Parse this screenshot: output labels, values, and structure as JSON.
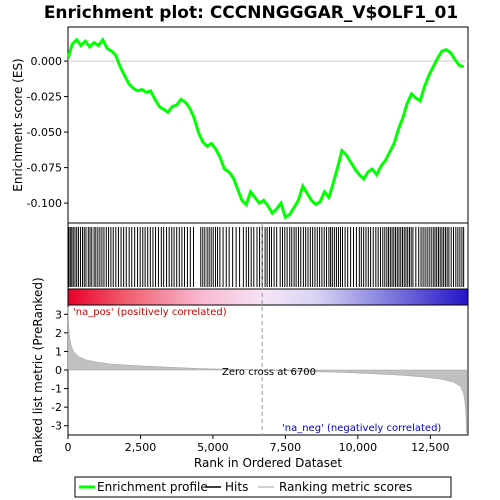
{
  "chart_data": {
    "type": "line",
    "title": "Enrichment plot: CCCNNGGGAR_V$OLF1_01",
    "top_panel": {
      "ylabel": "Enrichment score (ES)",
      "ylim": [
        -0.114,
        0.024
      ],
      "yticks": [
        0.0,
        -0.025,
        -0.05,
        -0.075,
        -0.1
      ],
      "ytick_labels": [
        "0.000",
        "-0.025",
        "-0.050",
        "-0.075",
        "-0.100"
      ],
      "series": [
        {
          "name": "Enrichment profile",
          "color": "#00ff00",
          "x": [
            0,
            150,
            300,
            450,
            600,
            750,
            900,
            1050,
            1200,
            1350,
            1500,
            1650,
            1800,
            1950,
            2100,
            2250,
            2400,
            2550,
            2700,
            2850,
            3000,
            3150,
            3300,
            3450,
            3600,
            3750,
            3900,
            4050,
            4200,
            4350,
            4500,
            4650,
            4800,
            4950,
            5100,
            5250,
            5400,
            5550,
            5700,
            5850,
            6000,
            6150,
            6300,
            6450,
            6600,
            6750,
            6900,
            7050,
            7200,
            7350,
            7500,
            7650,
            7800,
            7950,
            8100,
            8250,
            8400,
            8550,
            8700,
            8850,
            9000,
            9150,
            9300,
            9450,
            9600,
            9750,
            9900,
            10050,
            10200,
            10350,
            10500,
            10650,
            10800,
            10950,
            11100,
            11250,
            11400,
            11550,
            11700,
            11850,
            12000,
            12150,
            12300,
            12450,
            12600,
            12750,
            12900,
            13050,
            13200,
            13350,
            13500,
            13650
          ],
          "y": [
            0.002,
            0.012,
            0.015,
            0.011,
            0.014,
            0.01,
            0.013,
            0.011,
            0.015,
            0.009,
            0.007,
            0.004,
            -0.004,
            -0.01,
            -0.016,
            -0.019,
            -0.021,
            -0.02,
            -0.022,
            -0.021,
            -0.027,
            -0.032,
            -0.034,
            -0.036,
            -0.032,
            -0.031,
            -0.027,
            -0.029,
            -0.033,
            -0.04,
            -0.05,
            -0.057,
            -0.06,
            -0.058,
            -0.062,
            -0.068,
            -0.076,
            -0.078,
            -0.082,
            -0.09,
            -0.098,
            -0.101,
            -0.092,
            -0.096,
            -0.1,
            -0.098,
            -0.102,
            -0.107,
            -0.104,
            -0.1,
            -0.11,
            -0.108,
            -0.103,
            -0.098,
            -0.088,
            -0.093,
            -0.098,
            -0.101,
            -0.099,
            -0.092,
            -0.096,
            -0.086,
            -0.075,
            -0.063,
            -0.066,
            -0.071,
            -0.076,
            -0.08,
            -0.083,
            -0.078,
            -0.076,
            -0.08,
            -0.074,
            -0.07,
            -0.064,
            -0.058,
            -0.048,
            -0.04,
            -0.03,
            -0.023,
            -0.026,
            -0.028,
            -0.018,
            -0.01,
            -0.004,
            0.002,
            0.007,
            0.008,
            0.006,
            0.001,
            -0.003,
            -0.004
          ]
        }
      ]
    },
    "hits_panel": {
      "legend_label": "Hits",
      "hit_ranks": [
        30,
        80,
        130,
        180,
        240,
        300,
        360,
        430,
        500,
        560,
        620,
        700,
        760,
        820,
        900,
        960,
        1030,
        1100,
        1170,
        1240,
        1320,
        1400,
        1480,
        1560,
        1650,
        1740,
        1830,
        1920,
        2010,
        2110,
        2200,
        2300,
        2400,
        2490,
        2580,
        2660,
        2750,
        2840,
        2930,
        3020,
        3120,
        3220,
        3300,
        3400,
        3490,
        3580,
        3660,
        3750,
        3840,
        3930,
        4020,
        4120,
        4220,
        4330,
        4580,
        4650,
        4720,
        4800,
        4870,
        4940,
        5010,
        5090,
        5160,
        5240,
        5350,
        5460,
        5560,
        5680,
        5800,
        5920,
        6050,
        6150,
        6230,
        6320,
        6410,
        6520,
        6610,
        6700,
        6800,
        6870,
        6950,
        7020,
        7110,
        7200,
        7320,
        7400,
        7480,
        7560,
        7650,
        7720,
        7800,
        7870,
        7950,
        8030,
        8120,
        8200,
        8280,
        8360,
        8440,
        8520,
        8600,
        8680,
        8760,
        8840,
        8920,
        9000,
        9060,
        9120,
        9190,
        9260,
        9330,
        9400,
        9470,
        9560,
        9650,
        9750,
        9850,
        9950,
        10050,
        10120,
        10200,
        10280,
        10360,
        10440,
        10530,
        10620,
        10700,
        10780,
        10860,
        10930,
        11000,
        11060,
        11120,
        11180,
        11240,
        11300,
        11360,
        11420,
        11480,
        11540,
        11600,
        11660,
        11720,
        11780,
        11840,
        11900,
        12000,
        12100,
        12180,
        12250,
        12320,
        12390,
        12460,
        12530,
        12600,
        12660,
        12720,
        12780,
        12840,
        12900,
        12960,
        13020,
        13080,
        13140,
        13220,
        13300,
        13380,
        13450,
        13520,
        13590,
        13650
      ]
    },
    "bottom_panel": {
      "ylabel": "Ranked list metric (PreRanked)",
      "xlabel": "Rank in Ordered Dataset",
      "ylim": [
        -3.5,
        3.5
      ],
      "yticks": [
        3,
        2,
        1,
        0,
        -1,
        -2,
        -3
      ],
      "ytick_labels": [
        "3",
        "2",
        "1",
        "0",
        "-1",
        "-2",
        "-3"
      ],
      "legend_label": "Ranking metric scores",
      "fill_color": "#c0c0c0",
      "zero_cross_rank": 6700,
      "annotations": {
        "pos_label": "'na_pos' (positively correlated)",
        "neg_label": "'na_neg' (negatively correlated)",
        "zero_cross_label": "Zero cross at 6700"
      },
      "metric_points": [
        [
          0,
          3.4
        ],
        [
          20,
          2.4
        ],
        [
          60,
          1.7
        ],
        [
          120,
          1.25
        ],
        [
          200,
          0.98
        ],
        [
          350,
          0.74
        ],
        [
          600,
          0.55
        ],
        [
          1000,
          0.42
        ],
        [
          1500,
          0.32
        ],
        [
          2500,
          0.22
        ],
        [
          3500,
          0.15
        ],
        [
          4500,
          0.08
        ],
        [
          5500,
          0.04
        ],
        [
          6700,
          0.0
        ],
        [
          8000,
          -0.07
        ],
        [
          9500,
          -0.13
        ],
        [
          10500,
          -0.2
        ],
        [
          11500,
          -0.28
        ],
        [
          12300,
          -0.38
        ],
        [
          12900,
          -0.5
        ],
        [
          13300,
          -0.65
        ],
        [
          13550,
          -0.9
        ],
        [
          13650,
          -1.3
        ],
        [
          13700,
          -1.8
        ],
        [
          13730,
          -2.5
        ],
        [
          13750,
          -3.4
        ]
      ]
    },
    "xlim": [
      0,
      13800
    ],
    "xticks": [
      0,
      2500,
      5000,
      7500,
      10000,
      12500
    ],
    "xtick_labels": [
      "0",
      "2,500",
      "5,000",
      "7,500",
      "10,000",
      "12,500"
    ],
    "legend": [
      "Enrichment profile",
      "Hits",
      "Ranking metric scores"
    ]
  }
}
